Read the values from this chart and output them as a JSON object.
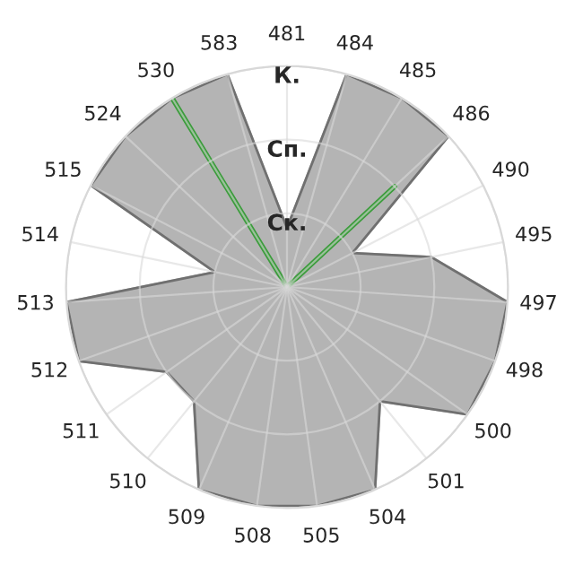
{
  "chart_data": {
    "type": "radar",
    "categories": [
      "481",
      "484",
      "485",
      "486",
      "490",
      "495",
      "497",
      "498",
      "500",
      "501",
      "504",
      "505",
      "508",
      "509",
      "510",
      "511",
      "512",
      "513",
      "514",
      "515",
      "524",
      "530",
      "583"
    ],
    "series": [
      {
        "color": "#b4b4b4",
        "values": [
          0.8,
          3,
          3,
          3,
          1,
          2,
          3,
          3,
          3,
          2,
          3,
          3,
          3,
          3,
          2,
          2,
          3,
          3,
          1,
          3,
          3,
          3,
          3
        ]
      },
      {
        "color": "#3c9c3c",
        "values": [
          0,
          0,
          0,
          2,
          0,
          0,
          0,
          0,
          0,
          0,
          0,
          0,
          0,
          0,
          0,
          0,
          0,
          0,
          0,
          0,
          0,
          3,
          0
        ]
      }
    ],
    "ylim": [
      0,
      3
    ],
    "yticks": [
      {
        "value": 1,
        "label": "Ск."
      },
      {
        "value": 2,
        "label": "Сп."
      },
      {
        "value": 3,
        "label": "К."
      }
    ],
    "grid": true
  }
}
